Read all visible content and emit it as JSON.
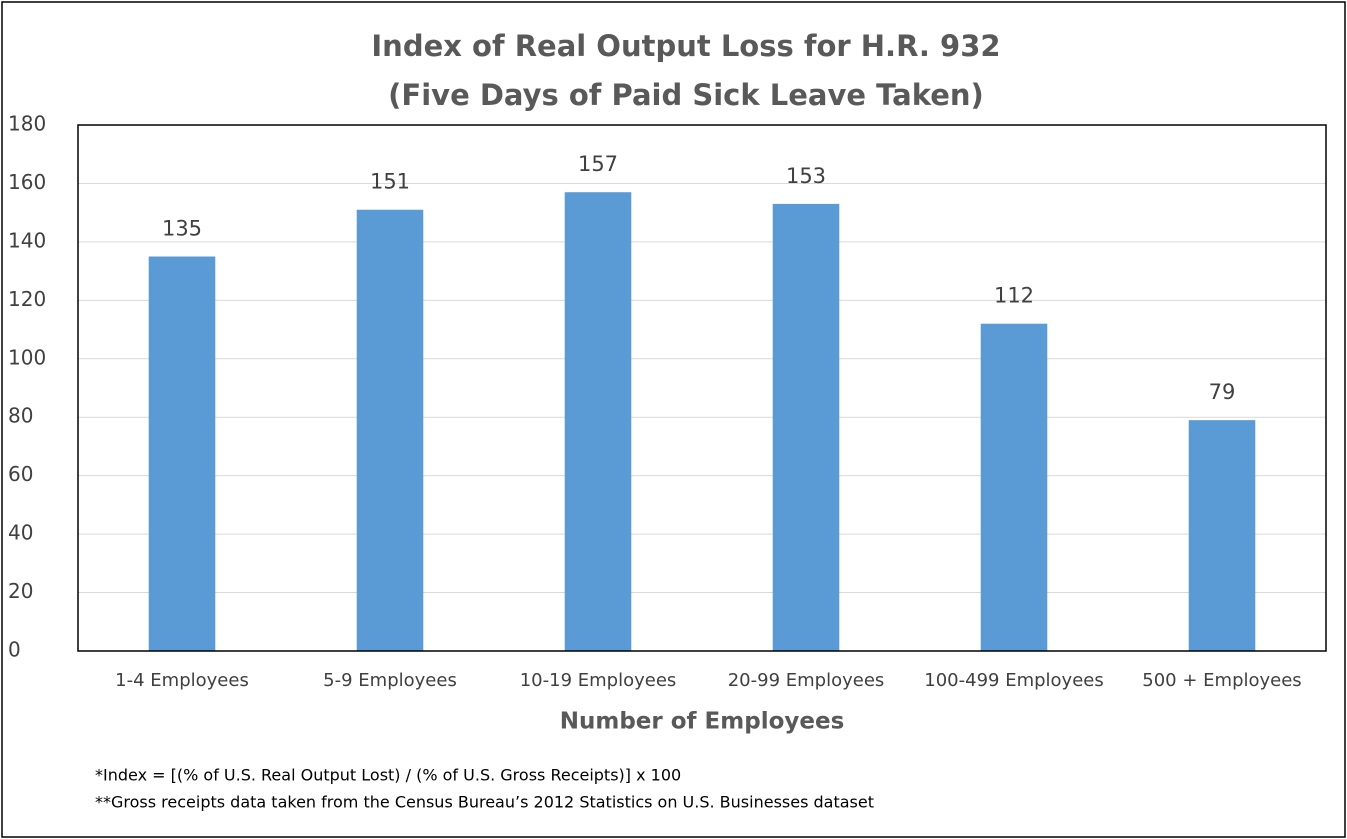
{
  "chart_data": {
    "type": "bar",
    "title": "Index of Real Output Loss for H.R. 932",
    "subtitle": "(Five Days of Paid Sick Leave Taken)",
    "x_label": "Number of Employees",
    "categories": [
      "1-4 Employees",
      "5-9 Employees",
      "10-19 Employees",
      "20-99 Employees",
      "100-499 Employees",
      "500 + Employees"
    ],
    "values": [
      135,
      151,
      157,
      153,
      112,
      79
    ],
    "color": "#5b9bd5",
    "ylim": [
      0,
      180
    ],
    "yticks": [
      0,
      20,
      40,
      60,
      80,
      100,
      120,
      140,
      160,
      180
    ],
    "grid": true,
    "notes": [
      "*Index = [(% of U.S. Real Output Lost) / (% of  U.S. Gross Receipts)] x 100",
      "**Gross receipts data taken from the Census Bureau’s 2012 Statistics on U.S. Businesses dataset"
    ]
  }
}
